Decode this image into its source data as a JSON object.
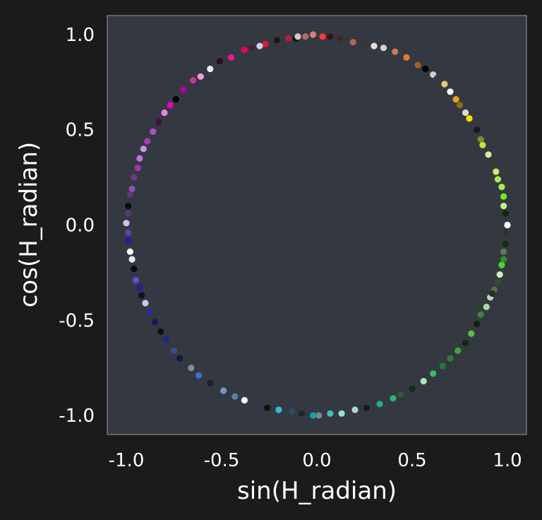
{
  "chart_data": {
    "type": "scatter",
    "title": "",
    "xlabel": "sin(H_radian)",
    "ylabel": "cos(H_radian)",
    "xlim": [
      -1.1,
      1.1
    ],
    "ylim": [
      -1.1,
      1.1
    ],
    "xticks": [
      -1.0,
      -0.5,
      0.0,
      0.5,
      1.0
    ],
    "xtick_labels": [
      "-1.0",
      "-0.5",
      "0.0",
      "0.5",
      "1.0"
    ],
    "yticks": [
      -1.0,
      -0.5,
      0.0,
      0.5,
      1.0
    ],
    "ytick_labels": [
      "-1.0",
      "-0.5",
      "0.0",
      "0.5",
      "1.0"
    ],
    "grid": false,
    "legend": "none",
    "background_color": "#1b1b1b",
    "plot_background_color": "#343840",
    "axis_color": "#9a9a9a",
    "marker_radius_data": 0.045,
    "points": [
      {
        "x": -0.21,
        "y": 0.97,
        "color": "#1a1a1a"
      },
      {
        "x": -0.15,
        "y": 0.98,
        "color": "#b81d3a"
      },
      {
        "x": -0.11,
        "y": 0.98,
        "color": "#0f0f0f"
      },
      {
        "x": -0.06,
        "y": 0.99,
        "color": "#b06d70"
      },
      {
        "x": -0.02,
        "y": 1.0,
        "color": "#e07a80"
      },
      {
        "x": 0.03,
        "y": 0.99,
        "color": "#f03c3c"
      },
      {
        "x": 0.07,
        "y": 0.99,
        "color": "#3a1212"
      },
      {
        "x": 0.12,
        "y": 0.98,
        "color": "#3b2a2a"
      },
      {
        "x": 0.19,
        "y": 0.96,
        "color": "#b06a52"
      },
      {
        "x": 0.25,
        "y": 0.95,
        "color": "#3a3434"
      },
      {
        "x": 0.3,
        "y": 0.94,
        "color": "#e8ddd6"
      },
      {
        "x": 0.35,
        "y": 0.93,
        "color": "#d8d2d0"
      },
      {
        "x": 0.41,
        "y": 0.91,
        "color": "#c87a54"
      },
      {
        "x": 0.47,
        "y": 0.88,
        "color": "#f07a2a"
      },
      {
        "x": 0.53,
        "y": 0.84,
        "color": "#a0602e"
      },
      {
        "x": 0.57,
        "y": 0.82,
        "color": "#000000"
      },
      {
        "x": 0.61,
        "y": 0.79,
        "color": "#cfcfcf"
      },
      {
        "x": 0.67,
        "y": 0.74,
        "color": "#e8c87a"
      },
      {
        "x": 0.7,
        "y": 0.7,
        "color": "#ffffff"
      },
      {
        "x": 0.73,
        "y": 0.66,
        "color": "#e8a020"
      },
      {
        "x": 0.75,
        "y": 0.63,
        "color": "#8a7018"
      },
      {
        "x": 0.78,
        "y": 0.59,
        "color": "#e0e0c0"
      },
      {
        "x": 0.8,
        "y": 0.56,
        "color": "#f5e000"
      },
      {
        "x": 0.84,
        "y": 0.5,
        "color": "#1a1a1a"
      },
      {
        "x": 0.86,
        "y": 0.45,
        "color": "#8a8a30"
      },
      {
        "x": 0.87,
        "y": 0.42,
        "color": "#c8e040"
      },
      {
        "x": 0.9,
        "y": 0.37,
        "color": "#dde8a0"
      },
      {
        "x": 0.92,
        "y": 0.33,
        "color": "#3a3a2a"
      },
      {
        "x": 0.94,
        "y": 0.28,
        "color": "#c8f060"
      },
      {
        "x": 0.95,
        "y": 0.24,
        "color": "#a8e860"
      },
      {
        "x": 0.97,
        "y": 0.2,
        "color": "#a0f050"
      },
      {
        "x": 0.98,
        "y": 0.15,
        "color": "#78e820"
      },
      {
        "x": 0.98,
        "y": 0.1,
        "color": "#c0f080"
      },
      {
        "x": 0.99,
        "y": 0.06,
        "color": "#0f2a08"
      },
      {
        "x": 1.0,
        "y": 0.0,
        "color": "#ffffff"
      },
      {
        "x": 0.99,
        "y": -0.04,
        "color": "#2a3a2a"
      },
      {
        "x": 0.99,
        "y": -0.1,
        "color": "#103010"
      },
      {
        "x": 0.98,
        "y": -0.14,
        "color": "#5a7a5a"
      },
      {
        "x": 0.98,
        "y": -0.18,
        "color": "#3a8a2a"
      },
      {
        "x": 0.97,
        "y": -0.21,
        "color": "#48d828"
      },
      {
        "x": 0.96,
        "y": -0.26,
        "color": "#cfe8c8"
      },
      {
        "x": 0.95,
        "y": -0.3,
        "color": "#305030"
      },
      {
        "x": 0.93,
        "y": -0.34,
        "color": "#4a7a3a"
      },
      {
        "x": 0.91,
        "y": -0.38,
        "color": "#c0d8b8"
      },
      {
        "x": 0.89,
        "y": -0.43,
        "color": "#a8d8a0"
      },
      {
        "x": 0.86,
        "y": -0.47,
        "color": "#3a8a30"
      },
      {
        "x": 0.84,
        "y": -0.52,
        "color": "#102010"
      },
      {
        "x": 0.81,
        "y": -0.57,
        "color": "#5ac040"
      },
      {
        "x": 0.78,
        "y": -0.62,
        "color": "#0f2a0f"
      },
      {
        "x": 0.74,
        "y": -0.66,
        "color": "#38a838"
      },
      {
        "x": 0.7,
        "y": -0.7,
        "color": "#2a8030"
      },
      {
        "x": 0.66,
        "y": -0.74,
        "color": "#1f7a3a"
      },
      {
        "x": 0.61,
        "y": -0.78,
        "color": "#38c060"
      },
      {
        "x": 0.56,
        "y": -0.82,
        "color": "#a8e8b8"
      },
      {
        "x": 0.5,
        "y": -0.86,
        "color": "#132a1a"
      },
      {
        "x": 0.44,
        "y": -0.89,
        "color": "#2a5a3a"
      },
      {
        "x": 0.4,
        "y": -0.91,
        "color": "#28b870"
      },
      {
        "x": 0.33,
        "y": -0.94,
        "color": "#1fb07a"
      },
      {
        "x": 0.26,
        "y": -0.96,
        "color": "#1a1a1a"
      },
      {
        "x": 0.2,
        "y": -0.97,
        "color": "#a8d8c8"
      },
      {
        "x": 0.13,
        "y": -0.99,
        "color": "#98e0d0"
      },
      {
        "x": 0.07,
        "y": -0.99,
        "color": "#40c0b8"
      },
      {
        "x": 0.01,
        "y": -1.0,
        "color": "#7a8a8a"
      },
      {
        "x": -0.02,
        "y": -1.0,
        "color": "#1aa0a8"
      },
      {
        "x": -0.08,
        "y": -0.99,
        "color": "#1a2a2a"
      },
      {
        "x": -0.13,
        "y": -0.98,
        "color": "#2a5060"
      },
      {
        "x": -0.2,
        "y": -0.97,
        "color": "#38b8e0"
      },
      {
        "x": -0.26,
        "y": -0.96,
        "color": "#101010"
      },
      {
        "x": -0.31,
        "y": -0.95,
        "color": "#2a3a4a"
      },
      {
        "x": -0.38,
        "y": -0.92,
        "color": "#ffffff"
      },
      {
        "x": -0.43,
        "y": -0.9,
        "color": "#5a80a8"
      },
      {
        "x": -0.49,
        "y": -0.87,
        "color": "#7898c0"
      },
      {
        "x": -0.56,
        "y": -0.83,
        "color": "#1a2030"
      },
      {
        "x": -0.62,
        "y": -0.79,
        "color": "#3a70c8"
      },
      {
        "x": -0.66,
        "y": -0.75,
        "color": "#888aa0"
      },
      {
        "x": -0.72,
        "y": -0.7,
        "color": "#0f1a40"
      },
      {
        "x": -0.75,
        "y": -0.66,
        "color": "#3a4a98"
      },
      {
        "x": -0.79,
        "y": -0.6,
        "color": "#1a2a8a"
      },
      {
        "x": -0.82,
        "y": -0.56,
        "color": "#101010"
      },
      {
        "x": -0.85,
        "y": -0.51,
        "color": "#18185a"
      },
      {
        "x": -0.88,
        "y": -0.46,
        "color": "#2a2aa0"
      },
      {
        "x": -0.9,
        "y": -0.41,
        "color": "#c8c8f0"
      },
      {
        "x": -0.92,
        "y": -0.37,
        "color": "#101028"
      },
      {
        "x": -0.93,
        "y": -0.33,
        "color": "#2020a8"
      },
      {
        "x": -0.95,
        "y": -0.29,
        "color": "#6050d0"
      },
      {
        "x": -0.96,
        "y": -0.23,
        "color": "#0a0a0a"
      },
      {
        "x": -0.97,
        "y": -0.18,
        "color": "#e8e8e8"
      },
      {
        "x": -0.98,
        "y": -0.14,
        "color": "#ffffff"
      },
      {
        "x": -0.99,
        "y": -0.08,
        "color": "#3018a0"
      },
      {
        "x": -0.99,
        "y": -0.04,
        "color": "#6040b0"
      },
      {
        "x": -1.0,
        "y": 0.01,
        "color": "#d0c0e8"
      },
      {
        "x": -0.99,
        "y": 0.06,
        "color": "#5a3a78"
      },
      {
        "x": -0.99,
        "y": 0.1,
        "color": "#0a0a0a"
      },
      {
        "x": -0.98,
        "y": 0.16,
        "color": "#5a3a7a"
      },
      {
        "x": -0.97,
        "y": 0.19,
        "color": "#9050c0"
      },
      {
        "x": -0.96,
        "y": 0.25,
        "color": "#6a3a8a"
      },
      {
        "x": -0.94,
        "y": 0.3,
        "color": "#9a38b0"
      },
      {
        "x": -0.93,
        "y": 0.35,
        "color": "#c870e0"
      },
      {
        "x": -0.91,
        "y": 0.4,
        "color": "#d090e8"
      },
      {
        "x": -0.89,
        "y": 0.44,
        "color": "#a040b0"
      },
      {
        "x": -0.86,
        "y": 0.49,
        "color": "#b050c8"
      },
      {
        "x": -0.83,
        "y": 0.54,
        "color": "#401040"
      },
      {
        "x": -0.8,
        "y": 0.59,
        "color": "#e880e8"
      },
      {
        "x": -0.77,
        "y": 0.63,
        "color": "#f000c0"
      },
      {
        "x": -0.74,
        "y": 0.66,
        "color": "#000000"
      },
      {
        "x": -0.7,
        "y": 0.71,
        "color": "#b000a0"
      },
      {
        "x": -0.65,
        "y": 0.76,
        "color": "#d03098"
      },
      {
        "x": -0.61,
        "y": 0.78,
        "color": "#f0a0c8"
      },
      {
        "x": -0.56,
        "y": 0.82,
        "color": "#f0e8f0"
      },
      {
        "x": -0.51,
        "y": 0.86,
        "color": "#2a1018"
      },
      {
        "x": -0.45,
        "y": 0.88,
        "color": "#f01888"
      },
      {
        "x": -0.38,
        "y": 0.92,
        "color": "#e80060"
      },
      {
        "x": -0.34,
        "y": 0.93,
        "color": "#4a2038"
      },
      {
        "x": -0.27,
        "y": 0.95,
        "color": "#e81040"
      },
      {
        "x": -0.1,
        "y": 0.99,
        "color": "#d8c8c8"
      },
      {
        "x": -0.3,
        "y": 0.94,
        "color": "#c0d8e8"
      },
      {
        "x": 0.63,
        "y": 0.77,
        "color": "#3a3a3a"
      },
      {
        "x": 0.92,
        "y": -0.36,
        "color": "#2a2a2a"
      }
    ]
  }
}
